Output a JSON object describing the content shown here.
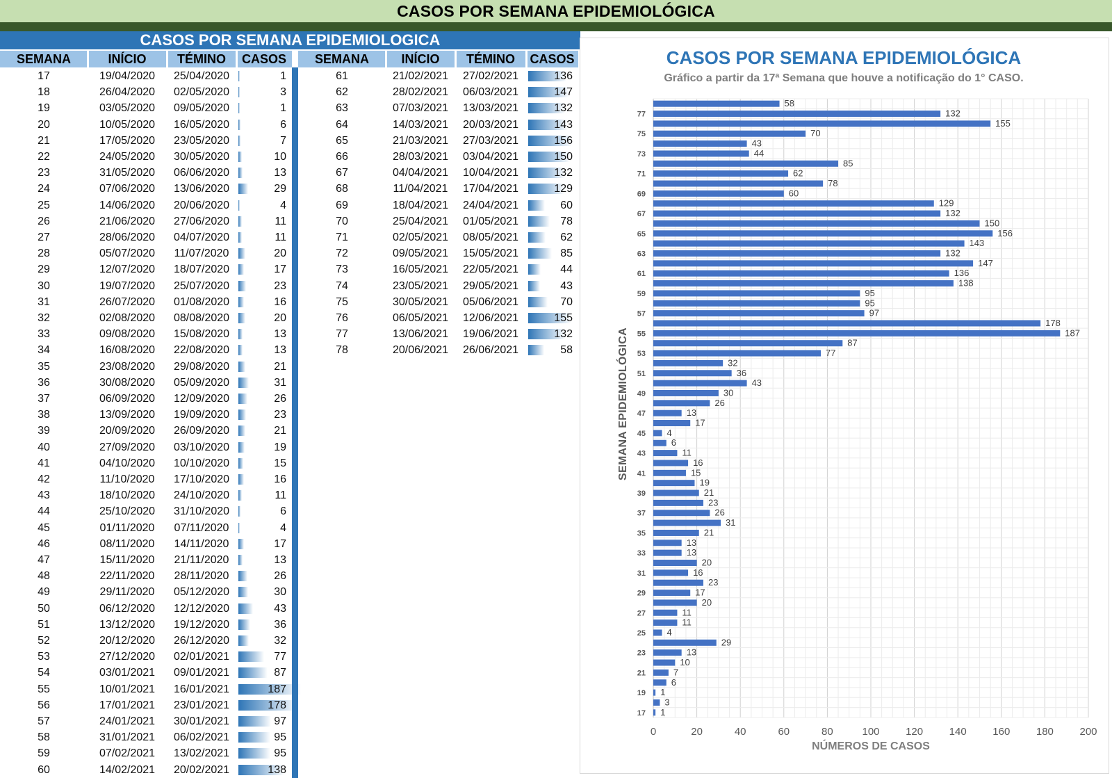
{
  "banner": {
    "title": "CASOS POR SEMANA EPIDEMIOLÓGICA"
  },
  "table": {
    "title": "CASOS POR SEMANA EPIDEMIOLOGICA",
    "headers": [
      "SEMANA",
      "INÍCIO",
      "TÉMINO",
      "CASOS"
    ],
    "left_rows": [
      [
        "17",
        "19/04/2020",
        "25/04/2020",
        1
      ],
      [
        "18",
        "26/04/2020",
        "02/05/2020",
        3
      ],
      [
        "19",
        "03/05/2020",
        "09/05/2020",
        1
      ],
      [
        "20",
        "10/05/2020",
        "16/05/2020",
        6
      ],
      [
        "21",
        "17/05/2020",
        "23/05/2020",
        7
      ],
      [
        "22",
        "24/05/2020",
        "30/05/2020",
        10
      ],
      [
        "23",
        "31/05/2020",
        "06/06/2020",
        13
      ],
      [
        "24",
        "07/06/2020",
        "13/06/2020",
        29
      ],
      [
        "25",
        "14/06/2020",
        "20/06/2020",
        4
      ],
      [
        "26",
        "21/06/2020",
        "27/06/2020",
        11
      ],
      [
        "27",
        "28/06/2020",
        "04/07/2020",
        11
      ],
      [
        "28",
        "05/07/2020",
        "11/07/2020",
        20
      ],
      [
        "29",
        "12/07/2020",
        "18/07/2020",
        17
      ],
      [
        "30",
        "19/07/2020",
        "25/07/2020",
        23
      ],
      [
        "31",
        "26/07/2020",
        "01/08/2020",
        16
      ],
      [
        "32",
        "02/08/2020",
        "08/08/2020",
        20
      ],
      [
        "33",
        "09/08/2020",
        "15/08/2020",
        13
      ],
      [
        "34",
        "16/08/2020",
        "22/08/2020",
        13
      ],
      [
        "35",
        "23/08/2020",
        "29/08/2020",
        21
      ],
      [
        "36",
        "30/08/2020",
        "05/09/2020",
        31
      ],
      [
        "37",
        "06/09/2020",
        "12/09/2020",
        26
      ],
      [
        "38",
        "13/09/2020",
        "19/09/2020",
        23
      ],
      [
        "39",
        "20/09/2020",
        "26/09/2020",
        21
      ],
      [
        "40",
        "27/09/2020",
        "03/10/2020",
        19
      ],
      [
        "41",
        "04/10/2020",
        "10/10/2020",
        15
      ],
      [
        "42",
        "11/10/2020",
        "17/10/2020",
        16
      ],
      [
        "43",
        "18/10/2020",
        "24/10/2020",
        11
      ],
      [
        "44",
        "25/10/2020",
        "31/10/2020",
        6
      ],
      [
        "45",
        "01/11/2020",
        "07/11/2020",
        4
      ],
      [
        "46",
        "08/11/2020",
        "14/11/2020",
        17
      ],
      [
        "47",
        "15/11/2020",
        "21/11/2020",
        13
      ],
      [
        "48",
        "22/11/2020",
        "28/11/2020",
        26
      ],
      [
        "49",
        "29/11/2020",
        "05/12/2020",
        30
      ],
      [
        "50",
        "06/12/2020",
        "12/12/2020",
        43
      ],
      [
        "51",
        "13/12/2020",
        "19/12/2020",
        36
      ],
      [
        "52",
        "20/12/2020",
        "26/12/2020",
        32
      ],
      [
        "53",
        "27/12/2020",
        "02/01/2021",
        77
      ],
      [
        "54",
        "03/01/2021",
        "09/01/2021",
        87
      ],
      [
        "55",
        "10/01/2021",
        "16/01/2021",
        187
      ],
      [
        "56",
        "17/01/2021",
        "23/01/2021",
        178
      ],
      [
        "57",
        "24/01/2021",
        "30/01/2021",
        97
      ],
      [
        "58",
        "31/01/2021",
        "06/02/2021",
        95
      ],
      [
        "59",
        "07/02/2021",
        "13/02/2021",
        95
      ],
      [
        "60",
        "14/02/2021",
        "20/02/2021",
        138
      ]
    ],
    "right_rows": [
      [
        "61",
        "21/02/2021",
        "27/02/2021",
        136
      ],
      [
        "62",
        "28/02/2021",
        "06/03/2021",
        147
      ],
      [
        "63",
        "07/03/2021",
        "13/03/2021",
        132
      ],
      [
        "64",
        "14/03/2021",
        "20/03/2021",
        143
      ],
      [
        "65",
        "21/03/2021",
        "27/03/2021",
        156
      ],
      [
        "66",
        "28/03/2021",
        "03/04/2021",
        150
      ],
      [
        "67",
        "04/04/2021",
        "10/04/2021",
        132
      ],
      [
        "68",
        "11/04/2021",
        "17/04/2021",
        129
      ],
      [
        "69",
        "18/04/2021",
        "24/04/2021",
        60
      ],
      [
        "70",
        "25/04/2021",
        "01/05/2021",
        78
      ],
      [
        "71",
        "02/05/2021",
        "08/05/2021",
        62
      ],
      [
        "72",
        "09/05/2021",
        "15/05/2021",
        85
      ],
      [
        "73",
        "16/05/2021",
        "22/05/2021",
        44
      ],
      [
        "74",
        "23/05/2021",
        "29/05/2021",
        43
      ],
      [
        "75",
        "30/05/2021",
        "05/06/2021",
        70
      ],
      [
        "76",
        "06/05/2021",
        "12/06/2021",
        155
      ],
      [
        "77",
        "13/06/2021",
        "19/06/2021",
        132
      ],
      [
        "78",
        "20/06/2021",
        "26/06/2021",
        58
      ]
    ],
    "bar_color_start": "#2e75b6",
    "bar_color_end": "#ffffff"
  },
  "chart_data": {
    "type": "bar",
    "orientation": "horizontal",
    "title": "CASOS POR SEMANA EPIDEMIOLÓGICA",
    "subtitle": "Gráfico a partir da 17ª Semana que houve a notificação do 1° CASO.",
    "xlabel": "NÚMEROS DE CASOS",
    "ylabel": "SEMANA EPIDEMIOLÓGICA",
    "xlim": [
      0,
      200
    ],
    "xticks": [
      0,
      20,
      40,
      60,
      80,
      100,
      120,
      140,
      160,
      180,
      200
    ],
    "ytick_labels": [
      "17",
      "19",
      "21",
      "23",
      "25",
      "27",
      "29",
      "31",
      "33",
      "35",
      "37",
      "39",
      "41",
      "43",
      "45",
      "47",
      "49",
      "51",
      "53",
      "55",
      "57",
      "59",
      "61",
      "63",
      "65",
      "67",
      "69",
      "71",
      "73",
      "75",
      "77"
    ],
    "grid": true,
    "bar_color": "#4472c4",
    "categories": [
      "17",
      "18",
      "19",
      "20",
      "21",
      "22",
      "23",
      "24",
      "25",
      "26",
      "27",
      "28",
      "29",
      "30",
      "31",
      "32",
      "33",
      "34",
      "35",
      "36",
      "37",
      "38",
      "39",
      "40",
      "41",
      "42",
      "43",
      "44",
      "45",
      "46",
      "47",
      "48",
      "49",
      "50",
      "51",
      "52",
      "53",
      "54",
      "55",
      "56",
      "57",
      "58",
      "59",
      "60",
      "61",
      "62",
      "63",
      "64",
      "65",
      "66",
      "67",
      "68",
      "69",
      "70",
      "71",
      "72",
      "73",
      "74",
      "75",
      "76",
      "77",
      "78"
    ],
    "values": [
      1,
      3,
      1,
      6,
      7,
      10,
      13,
      29,
      4,
      11,
      11,
      20,
      17,
      23,
      16,
      20,
      13,
      13,
      21,
      31,
      26,
      23,
      21,
      19,
      15,
      16,
      11,
      6,
      4,
      17,
      13,
      26,
      30,
      43,
      36,
      32,
      77,
      87,
      187,
      178,
      97,
      95,
      95,
      138,
      136,
      147,
      132,
      143,
      156,
      150,
      132,
      129,
      60,
      78,
      62,
      85,
      44,
      43,
      70,
      155,
      132,
      58
    ]
  }
}
